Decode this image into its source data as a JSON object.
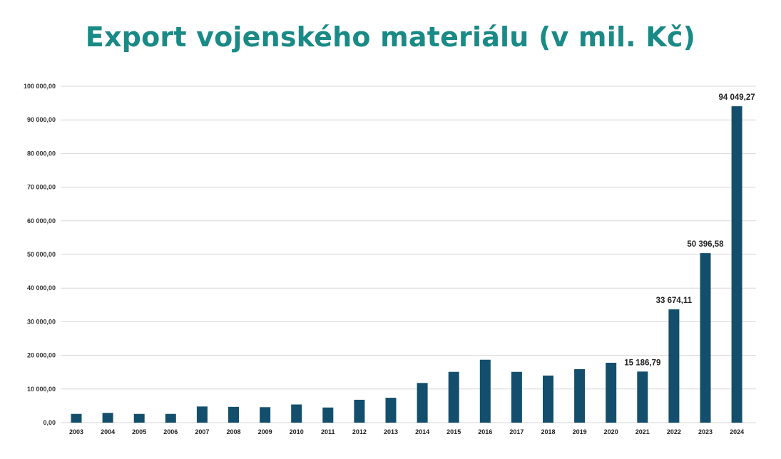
{
  "title": "Export vojenského materiálu (v mil. Kč)",
  "colors": {
    "title": "#1a8a86",
    "bar": "#134f6c",
    "grid": "#d7d7d7"
  },
  "chart_data": {
    "type": "bar",
    "title": "Export vojenského materiálu (v mil. Kč)",
    "xlabel": "",
    "ylabel": "",
    "ylim": [
      0,
      100000
    ],
    "grid": true,
    "legend": "none",
    "yticks": [
      0,
      10000,
      20000,
      30000,
      40000,
      50000,
      60000,
      70000,
      80000,
      90000,
      100000
    ],
    "ytick_labels": [
      "0,00",
      "10 000,00",
      "20 000,00",
      "30 000,00",
      "40 000,00",
      "50 000,00",
      "60 000,00",
      "70 000,00",
      "80 000,00",
      "90 000,00",
      "100 000,00"
    ],
    "categories": [
      "2003",
      "2004",
      "2005",
      "2006",
      "2007",
      "2008",
      "2009",
      "2010",
      "2011",
      "2012",
      "2013",
      "2014",
      "2015",
      "2016",
      "2017",
      "2018",
      "2019",
      "2020",
      "2021",
      "2022",
      "2023",
      "2024"
    ],
    "values": [
      2600,
      2900,
      2600,
      2600,
      4800,
      4700,
      4600,
      5400,
      4500,
      6800,
      7400,
      11800,
      15100,
      18700,
      15100,
      14000,
      15900,
      17800,
      15186.79,
      33674.11,
      50396.58,
      94049.27
    ],
    "data_labels": [
      {
        "category": "2021",
        "text": "15 186,79"
      },
      {
        "category": "2022",
        "text": "33 674,11"
      },
      {
        "category": "2023",
        "text": "50 396,58"
      },
      {
        "category": "2024",
        "text": "94 049,27"
      }
    ]
  }
}
